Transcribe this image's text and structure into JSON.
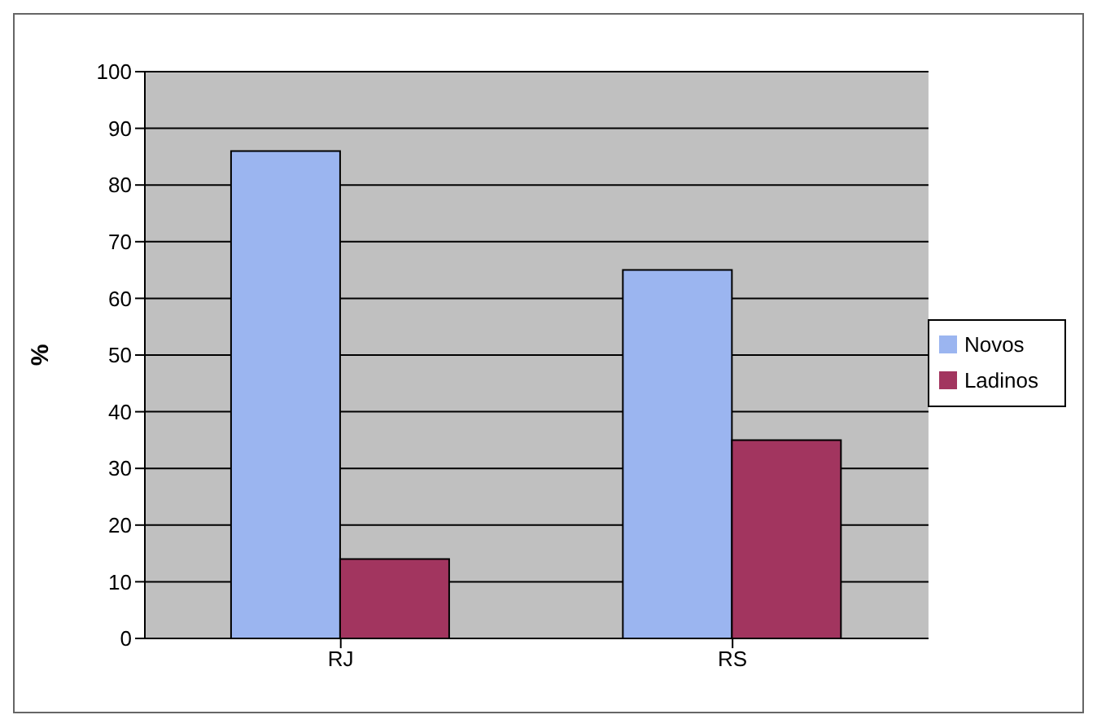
{
  "chart_data": {
    "type": "bar",
    "ylabel": "%",
    "categories": [
      "RJ",
      "RS"
    ],
    "series": [
      {
        "name": "Novos",
        "color": "#9bb5f0",
        "values": [
          86,
          65
        ]
      },
      {
        "name": "Ladinos",
        "color": "#a2355f",
        "values": [
          14,
          35
        ]
      }
    ],
    "ylim": [
      0,
      100
    ],
    "yticks": [
      0,
      10,
      20,
      30,
      40,
      50,
      60,
      70,
      80,
      90,
      100
    ],
    "grid": "y",
    "legend": "right"
  }
}
